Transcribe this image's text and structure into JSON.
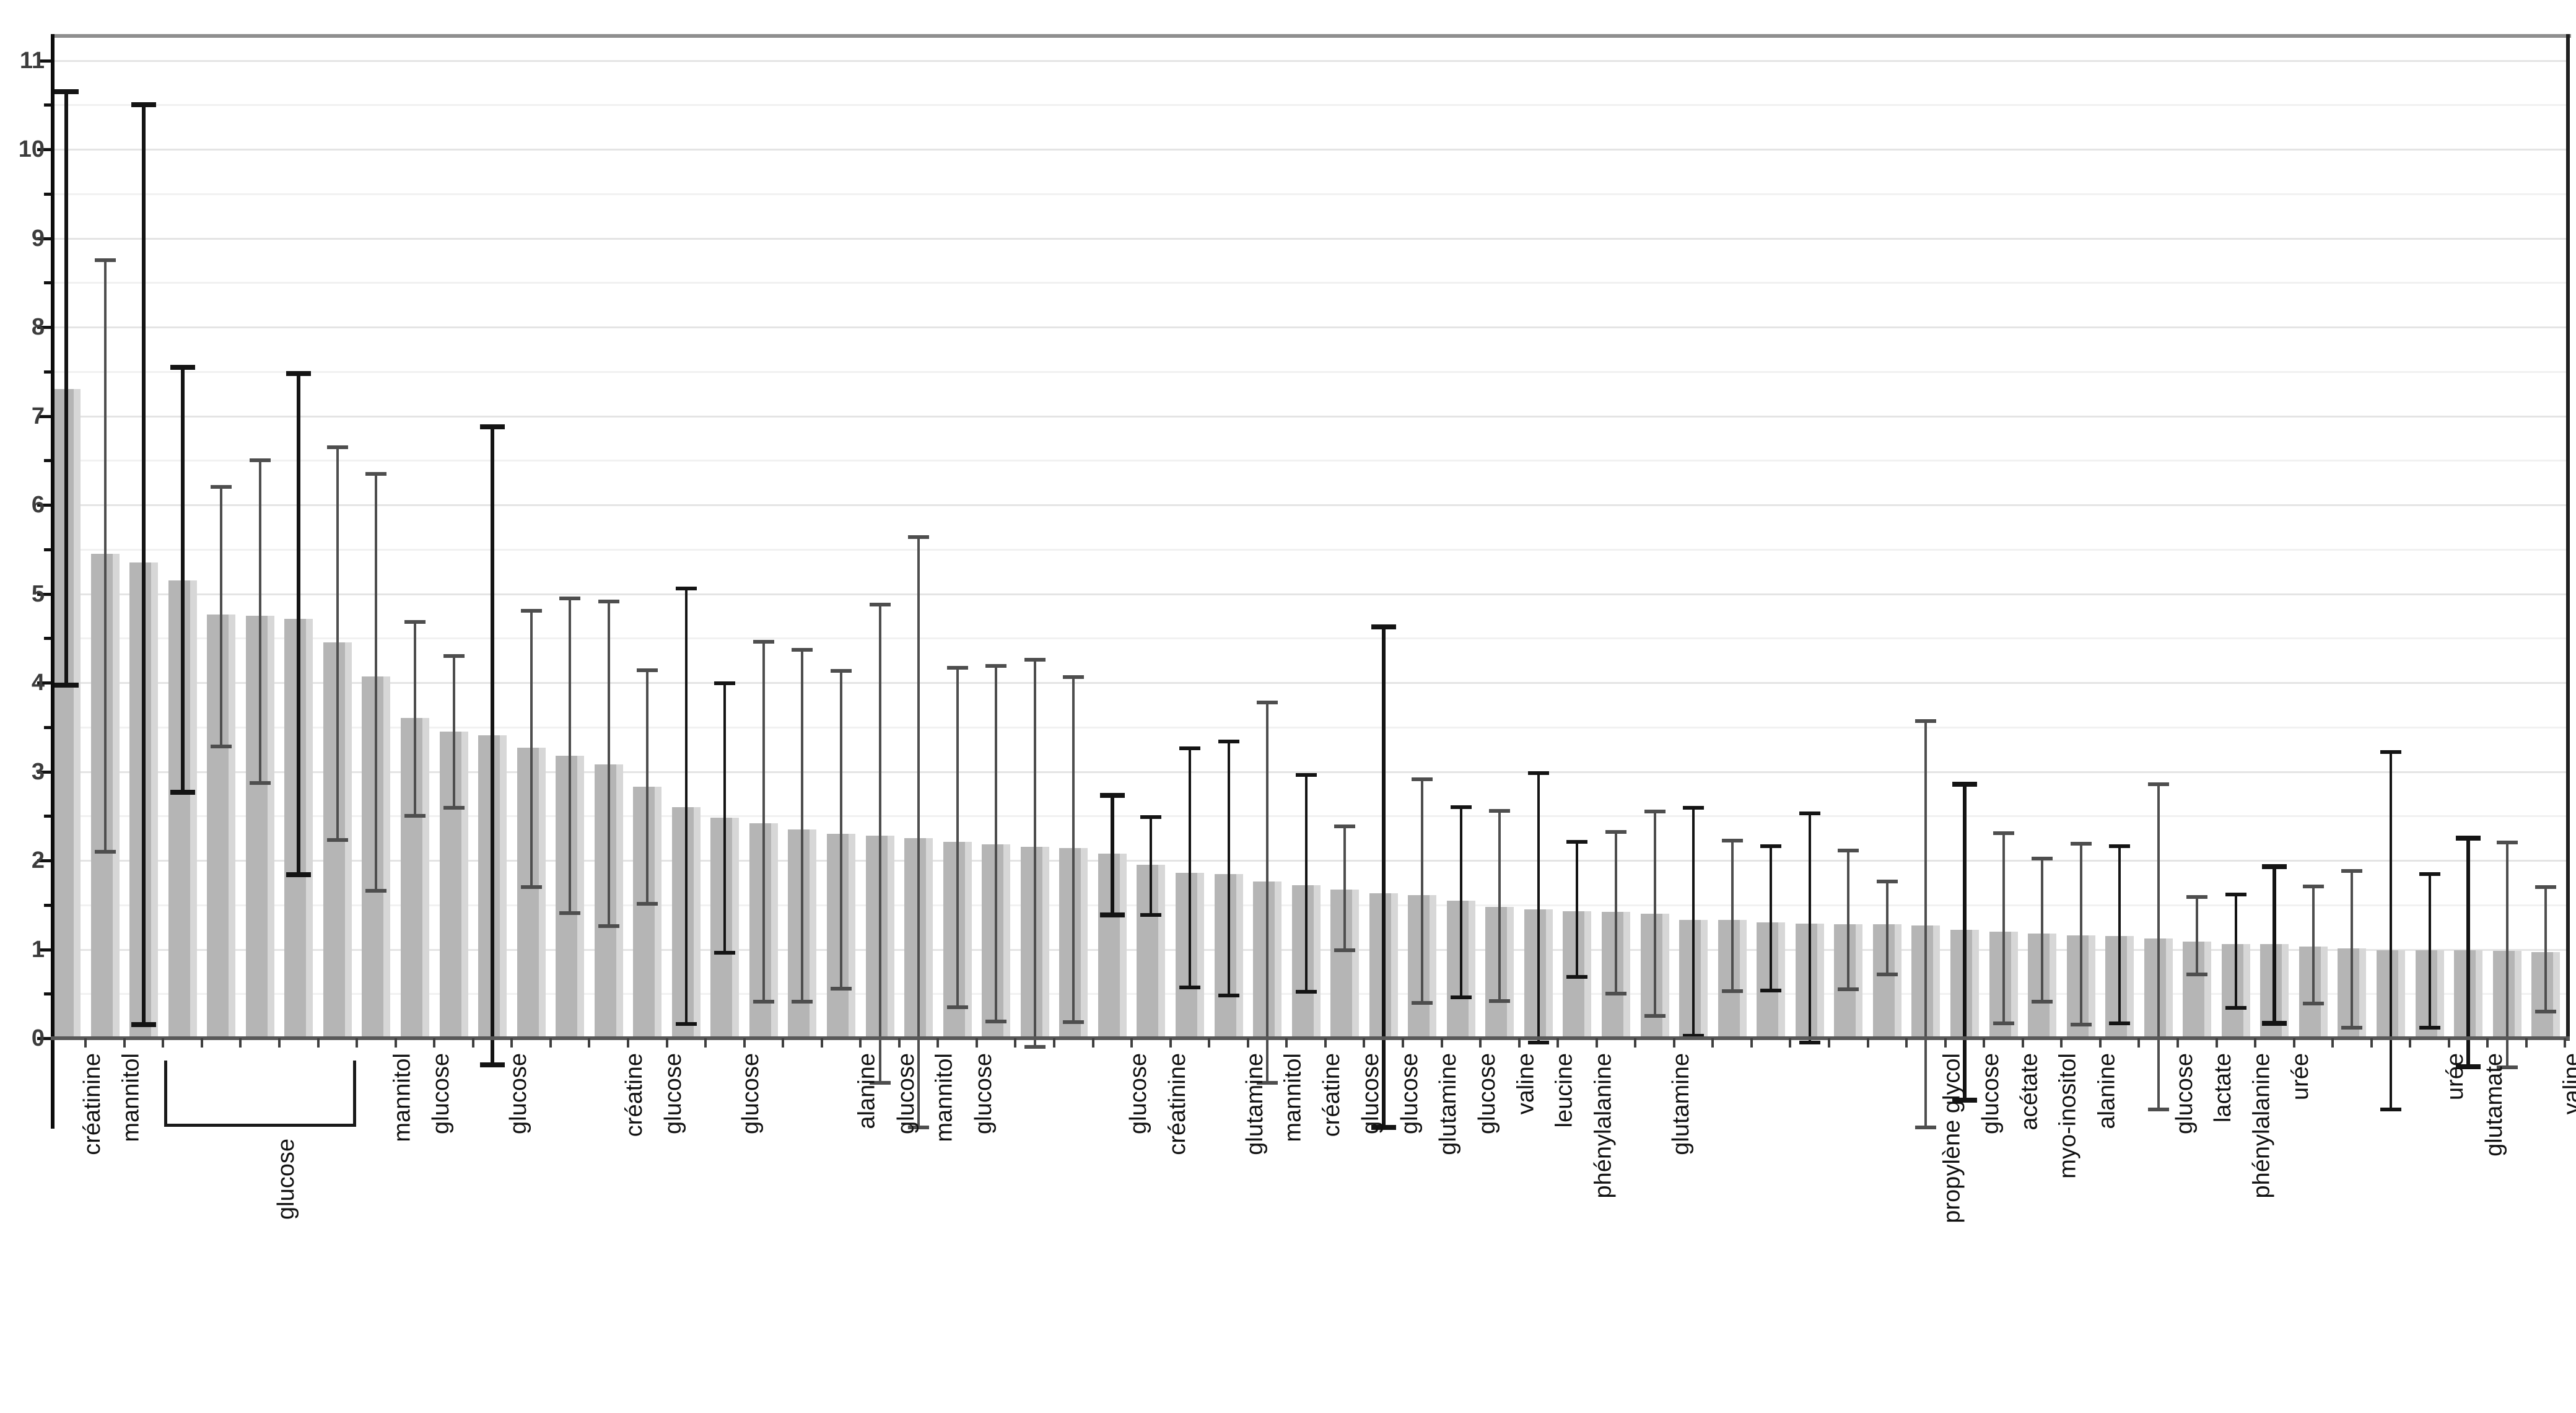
{
  "chart_data": {
    "type": "bar",
    "title": "",
    "xlabel": "",
    "ylabel": "",
    "ylim": [
      0,
      11.3
    ],
    "grid": "on",
    "legend": "none",
    "yticks": [
      "0",
      "1",
      "2",
      "3",
      "4",
      "5",
      "6",
      "7",
      "8",
      "9",
      "10",
      "11"
    ],
    "bracket": {
      "start_bar": 4,
      "end_bar": 8,
      "label": "glucose"
    },
    "bars": [
      {
        "label": "créatinine",
        "value": 7.3,
        "lo": 3.97,
        "hi": 10.65,
        "col": "k",
        "strong": true
      },
      {
        "label": "mannitol",
        "value": 5.45,
        "lo": 2.1,
        "hi": 8.75,
        "col": "g",
        "strong": false
      },
      {
        "label": "",
        "value": 5.35,
        "lo": 0.15,
        "hi": 10.5,
        "col": "k",
        "strong": true
      },
      {
        "label": "glucose",
        "value": 5.15,
        "lo": 2.77,
        "hi": 7.55,
        "col": "k",
        "strong": true
      },
      {
        "label": "glucose",
        "value": 4.77,
        "lo": 3.28,
        "hi": 6.2,
        "col": "g",
        "strong": false
      },
      {
        "label": "glucose",
        "value": 4.75,
        "lo": 2.87,
        "hi": 6.5,
        "col": "g",
        "strong": false
      },
      {
        "label": "glucose",
        "value": 4.72,
        "lo": 1.84,
        "hi": 7.48,
        "col": "k",
        "strong": true
      },
      {
        "label": "glucose",
        "value": 4.45,
        "lo": 2.23,
        "hi": 6.65,
        "col": "g",
        "strong": false
      },
      {
        "label": "mannitol",
        "value": 4.07,
        "lo": 1.66,
        "hi": 6.35,
        "col": "g",
        "strong": false
      },
      {
        "label": "glucose",
        "value": 3.6,
        "lo": 2.5,
        "hi": 4.68,
        "col": "g",
        "strong": false
      },
      {
        "label": "",
        "value": 3.45,
        "lo": 2.59,
        "hi": 4.3,
        "col": "g",
        "strong": false
      },
      {
        "label": "glucose",
        "value": 3.41,
        "lo": -0.3,
        "hi": 6.88,
        "col": "k",
        "strong": true
      },
      {
        "label": "",
        "value": 3.27,
        "lo": 1.7,
        "hi": 4.81,
        "col": "g",
        "strong": false
      },
      {
        "label": "",
        "value": 3.18,
        "lo": 1.41,
        "hi": 4.95,
        "col": "g",
        "strong": false
      },
      {
        "label": "créatine",
        "value": 3.08,
        "lo": 1.26,
        "hi": 4.91,
        "col": "g",
        "strong": false
      },
      {
        "label": "glucose",
        "value": 2.83,
        "lo": 1.51,
        "hi": 4.14,
        "col": "g",
        "strong": false
      },
      {
        "label": "",
        "value": 2.6,
        "lo": 0.16,
        "hi": 5.06,
        "col": "k",
        "strong": false
      },
      {
        "label": "glucose",
        "value": 2.48,
        "lo": 0.96,
        "hi": 3.99,
        "col": "k",
        "strong": false
      },
      {
        "label": "",
        "value": 2.42,
        "lo": 0.41,
        "hi": 4.46,
        "col": "g",
        "strong": false
      },
      {
        "label": "",
        "value": 2.35,
        "lo": 0.41,
        "hi": 4.37,
        "col": "g",
        "strong": false
      },
      {
        "label": "alanine",
        "value": 2.3,
        "lo": 0.56,
        "hi": 4.13,
        "col": "g",
        "strong": false
      },
      {
        "label": "glucose",
        "value": 2.28,
        "lo": -0.5,
        "hi": 4.88,
        "col": "g",
        "strong": false
      },
      {
        "label": "mannitol",
        "value": 2.25,
        "lo": -1.0,
        "hi": 5.64,
        "col": "g",
        "strong": false
      },
      {
        "label": "glucose",
        "value": 2.21,
        "lo": 0.35,
        "hi": 4.17,
        "col": "g",
        "strong": false
      },
      {
        "label": "",
        "value": 2.18,
        "lo": 0.19,
        "hi": 4.19,
        "col": "g",
        "strong": false
      },
      {
        "label": "",
        "value": 2.15,
        "lo": -0.1,
        "hi": 4.26,
        "col": "g",
        "strong": false
      },
      {
        "label": "",
        "value": 2.14,
        "lo": 0.18,
        "hi": 4.06,
        "col": "g",
        "strong": false
      },
      {
        "label": "glucose",
        "value": 2.08,
        "lo": 1.39,
        "hi": 2.73,
        "col": "k",
        "strong": true
      },
      {
        "label": "créatinine",
        "value": 1.95,
        "lo": 1.39,
        "hi": 2.49,
        "col": "k",
        "strong": false
      },
      {
        "label": "",
        "value": 1.86,
        "lo": 0.57,
        "hi": 3.26,
        "col": "k",
        "strong": false
      },
      {
        "label": "glutamine",
        "value": 1.85,
        "lo": 0.48,
        "hi": 3.34,
        "col": "k",
        "strong": false
      },
      {
        "label": "mannitol",
        "value": 1.76,
        "lo": -0.5,
        "hi": 3.78,
        "col": "g",
        "strong": false
      },
      {
        "label": "créatine",
        "value": 1.72,
        "lo": 0.52,
        "hi": 2.96,
        "col": "k",
        "strong": false
      },
      {
        "label": "glucose",
        "value": 1.67,
        "lo": 0.99,
        "hi": 2.38,
        "col": "g",
        "strong": false
      },
      {
        "label": "glucose",
        "value": 1.63,
        "lo": -1.0,
        "hi": 4.63,
        "col": "k",
        "strong": true
      },
      {
        "label": "glutamine",
        "value": 1.61,
        "lo": 0.4,
        "hi": 2.91,
        "col": "g",
        "strong": false
      },
      {
        "label": "glucose",
        "value": 1.55,
        "lo": 0.46,
        "hi": 2.6,
        "col": "k",
        "strong": false
      },
      {
        "label": "valine",
        "value": 1.48,
        "lo": 0.42,
        "hi": 2.56,
        "col": "g",
        "strong": false
      },
      {
        "label": "leucine",
        "value": 1.45,
        "lo": -0.05,
        "hi": 2.98,
        "col": "k",
        "strong": false
      },
      {
        "label": "phénylalanine",
        "value": 1.43,
        "lo": 0.69,
        "hi": 2.21,
        "col": "k",
        "strong": false
      },
      {
        "label": "",
        "value": 1.42,
        "lo": 0.5,
        "hi": 2.32,
        "col": "g",
        "strong": false
      },
      {
        "label": "glutamine",
        "value": 1.4,
        "lo": 0.25,
        "hi": 2.55,
        "col": "g",
        "strong": false
      },
      {
        "label": "",
        "value": 1.33,
        "lo": 0.03,
        "hi": 2.59,
        "col": "k",
        "strong": false
      },
      {
        "label": "",
        "value": 1.33,
        "lo": 0.53,
        "hi": 2.22,
        "col": "g",
        "strong": false
      },
      {
        "label": "",
        "value": 1.3,
        "lo": 0.54,
        "hi": 2.16,
        "col": "k",
        "strong": false
      },
      {
        "label": "",
        "value": 1.29,
        "lo": -0.05,
        "hi": 2.53,
        "col": "k",
        "strong": false
      },
      {
        "label": "",
        "value": 1.28,
        "lo": 0.55,
        "hi": 2.11,
        "col": "g",
        "strong": false
      },
      {
        "label": "",
        "value": 1.28,
        "lo": 0.72,
        "hi": 1.76,
        "col": "g",
        "strong": false
      },
      {
        "label": "propylène glycol",
        "value": 1.27,
        "lo": -1.0,
        "hi": 3.57,
        "col": "g",
        "strong": false
      },
      {
        "label": "glucose",
        "value": 1.22,
        "lo": -0.7,
        "hi": 2.86,
        "col": "k",
        "strong": true
      },
      {
        "label": "acétate",
        "value": 1.2,
        "lo": 0.17,
        "hi": 2.31,
        "col": "g",
        "strong": false
      },
      {
        "label": "myo-inositol",
        "value": 1.18,
        "lo": 0.41,
        "hi": 2.02,
        "col": "g",
        "strong": false
      },
      {
        "label": "alanine",
        "value": 1.16,
        "lo": 0.15,
        "hi": 2.19,
        "col": "g",
        "strong": false
      },
      {
        "label": "",
        "value": 1.15,
        "lo": 0.17,
        "hi": 2.16,
        "col": "k",
        "strong": false
      },
      {
        "label": "glucose",
        "value": 1.12,
        "lo": -0.8,
        "hi": 2.86,
        "col": "g",
        "strong": false
      },
      {
        "label": "lactate",
        "value": 1.09,
        "lo": 0.72,
        "hi": 1.59,
        "col": "g",
        "strong": false
      },
      {
        "label": "phénylalanine",
        "value": 1.06,
        "lo": 0.34,
        "hi": 1.62,
        "col": "k",
        "strong": false
      },
      {
        "label": "urée",
        "value": 1.06,
        "lo": 0.17,
        "hi": 1.93,
        "col": "k",
        "strong": true
      },
      {
        "label": "",
        "value": 1.03,
        "lo": 0.39,
        "hi": 1.71,
        "col": "g",
        "strong": false
      },
      {
        "label": "",
        "value": 1.01,
        "lo": 0.12,
        "hi": 1.88,
        "col": "g",
        "strong": false
      },
      {
        "label": "",
        "value": 0.99,
        "lo": -0.8,
        "hi": 3.22,
        "col": "k",
        "strong": false
      },
      {
        "label": "urée",
        "value": 0.99,
        "lo": 0.12,
        "hi": 1.85,
        "col": "k",
        "strong": false
      },
      {
        "label": "glutamate",
        "value": 0.99,
        "lo": -0.32,
        "hi": 2.25,
        "col": "k",
        "strong": true
      },
      {
        "label": "",
        "value": 0.98,
        "lo": -0.33,
        "hi": 2.2,
        "col": "g",
        "strong": false
      },
      {
        "label": "valine",
        "value": 0.97,
        "lo": 0.3,
        "hi": 1.7,
        "col": "g",
        "strong": false
      }
    ],
    "colors": {
      "bar_fill": "#b5b5b5",
      "bar_edge_light": "#d7d7d7",
      "whisker_gray": "#4e4e4e",
      "whisker_black": "#141414",
      "grid_major": "#e4e4e4",
      "grid_minor": "#f1f1f1",
      "axis_bottom": "#595959",
      "frame_top": "#8f8f8f",
      "frame_side": "#1f1f1f",
      "axis_left": "#0d0d0d",
      "text": "#111111",
      "ytext": "#3c3c3c"
    }
  }
}
